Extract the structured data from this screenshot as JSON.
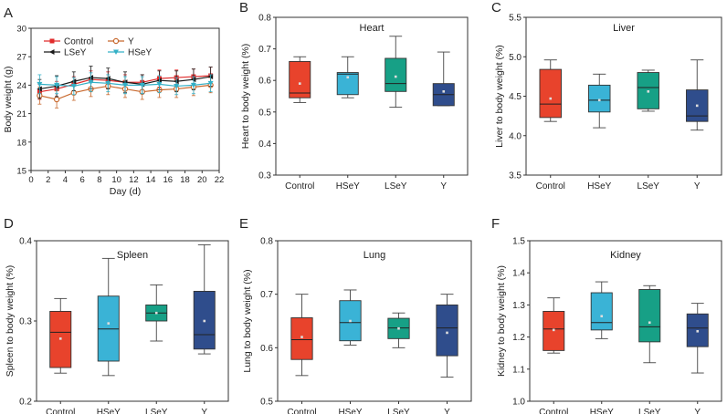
{
  "colors": {
    "control": "#e8432c",
    "hsey": "#3ab3d6",
    "lsey": "#17a086",
    "y": "#2f4d8c",
    "lineControl": "#e02b2b",
    "lineY": "#c8692e",
    "lineLSeY": "#1a1a1a",
    "lineHSeY": "#34b0c6"
  },
  "chart_data": [
    {
      "panel": "A",
      "type": "line",
      "title": "",
      "xlabel": "Day (d)",
      "ylabel": "Body weight (g)",
      "xlim": [
        0,
        22
      ],
      "ylim": [
        15,
        30
      ],
      "xticks": [
        "0",
        "2",
        "4",
        "6",
        "8",
        "10",
        "12",
        "14",
        "16",
        "18",
        "20",
        "22"
      ],
      "yticks": [
        "15",
        "18",
        "21",
        "24",
        "27",
        "30"
      ],
      "x": [
        1,
        3,
        5,
        7,
        9,
        11,
        13,
        15,
        17,
        19,
        21
      ],
      "legend_position": "top-left",
      "series": [
        {
          "name": "Control",
          "values": [
            23.3,
            23.6,
            24.1,
            24.6,
            24.5,
            24.3,
            24.3,
            24.7,
            24.8,
            24.9,
            25.0
          ],
          "error": [
            0.8,
            0.8,
            0.8,
            0.9,
            0.9,
            0.8,
            0.8,
            0.9,
            0.8,
            0.8,
            0.9
          ]
        },
        {
          "name": "Y",
          "values": [
            22.9,
            22.5,
            23.2,
            23.6,
            23.9,
            23.6,
            23.3,
            23.5,
            23.6,
            23.8,
            24.0
          ],
          "error": [
            0.9,
            0.9,
            0.8,
            0.8,
            0.9,
            0.9,
            0.8,
            0.8,
            0.9,
            0.9,
            0.8
          ]
        },
        {
          "name": "LSeY",
          "values": [
            23.6,
            23.9,
            24.4,
            24.8,
            24.7,
            24.3,
            24.1,
            24.5,
            24.4,
            24.6,
            24.9
          ],
          "error": [
            1.0,
            1.1,
            1.0,
            1.2,
            1.1,
            1.1,
            1.0,
            1.0,
            1.1,
            1.1,
            1.0
          ]
        },
        {
          "name": "HSeY",
          "values": [
            24.1,
            24.0,
            23.9,
            24.3,
            24.2,
            24.0,
            24.0,
            24.1,
            23.9,
            24.0,
            24.2
          ],
          "error": [
            1.0,
            0.9,
            0.9,
            1.0,
            0.9,
            0.9,
            0.9,
            0.9,
            0.9,
            0.9,
            0.9
          ]
        }
      ]
    },
    {
      "panel": "B",
      "type": "box",
      "title": "Heart",
      "ylabel": "Heart to body weight (%)",
      "ylim": [
        0.3,
        0.8
      ],
      "yticks": [
        "0.3",
        "0.4",
        "0.5",
        "0.6",
        "0.7",
        "0.8"
      ],
      "categories": [
        "Control",
        "HSeY",
        "LSeY",
        "Y"
      ],
      "boxes": [
        {
          "min": 0.53,
          "q1": 0.545,
          "median": 0.56,
          "q3": 0.66,
          "max": 0.675,
          "mean": 0.59
        },
        {
          "min": 0.545,
          "q1": 0.555,
          "median": 0.62,
          "q3": 0.625,
          "max": 0.675,
          "mean": 0.61
        },
        {
          "min": 0.515,
          "q1": 0.565,
          "median": 0.59,
          "q3": 0.67,
          "max": 0.74,
          "mean": 0.612
        },
        {
          "min": 0.52,
          "q1": 0.52,
          "median": 0.555,
          "q3": 0.59,
          "max": 0.69,
          "mean": 0.565
        }
      ]
    },
    {
      "panel": "C",
      "type": "box",
      "title": "Liver",
      "ylabel": "Liver to body weight (%)",
      "ylim": [
        3.5,
        5.5
      ],
      "yticks": [
        "3.5",
        "4.0",
        "4.5",
        "5.0",
        "5.5"
      ],
      "categories": [
        "Control",
        "HSeY",
        "LSeY",
        "Y"
      ],
      "boxes": [
        {
          "min": 4.18,
          "q1": 4.23,
          "median": 4.4,
          "q3": 4.84,
          "max": 4.96,
          "mean": 4.47
        },
        {
          "min": 4.1,
          "q1": 4.3,
          "median": 4.45,
          "q3": 4.64,
          "max": 4.78,
          "mean": 4.45
        },
        {
          "min": 4.31,
          "q1": 4.34,
          "median": 4.61,
          "q3": 4.8,
          "max": 4.83,
          "mean": 4.56
        },
        {
          "min": 4.07,
          "q1": 4.18,
          "median": 4.25,
          "q3": 4.58,
          "max": 4.96,
          "mean": 4.38
        }
      ]
    },
    {
      "panel": "D",
      "type": "box",
      "title": "Spleen",
      "ylabel": "Spleen to body weight (%)",
      "ylim": [
        0.2,
        0.4
      ],
      "yticks": [
        "0.2",
        "0.3",
        "0.4"
      ],
      "categories": [
        "Control",
        "HSeY",
        "LSeY",
        "Y"
      ],
      "boxes": [
        {
          "min": 0.235,
          "q1": 0.242,
          "median": 0.286,
          "q3": 0.312,
          "max": 0.328,
          "mean": 0.278
        },
        {
          "min": 0.232,
          "q1": 0.25,
          "median": 0.29,
          "q3": 0.331,
          "max": 0.378,
          "mean": 0.297
        },
        {
          "min": 0.275,
          "q1": 0.3,
          "median": 0.31,
          "q3": 0.32,
          "max": 0.345,
          "mean": 0.31
        },
        {
          "min": 0.259,
          "q1": 0.265,
          "median": 0.283,
          "q3": 0.337,
          "max": 0.395,
          "mean": 0.3
        }
      ]
    },
    {
      "panel": "E",
      "type": "box",
      "title": "Lung",
      "ylabel": "Lung to body weight (%)",
      "ylim": [
        0.5,
        0.8
      ],
      "yticks": [
        "0.5",
        "0.6",
        "0.7",
        "0.8"
      ],
      "categories": [
        "Control",
        "HSeY",
        "LSeY",
        "Y"
      ],
      "boxes": [
        {
          "min": 0.548,
          "q1": 0.578,
          "median": 0.615,
          "q3": 0.656,
          "max": 0.7,
          "mean": 0.62
        },
        {
          "min": 0.605,
          "q1": 0.613,
          "median": 0.647,
          "q3": 0.688,
          "max": 0.708,
          "mean": 0.65
        },
        {
          "min": 0.6,
          "q1": 0.617,
          "median": 0.637,
          "q3": 0.655,
          "max": 0.665,
          "mean": 0.636
        },
        {
          "min": 0.545,
          "q1": 0.585,
          "median": 0.637,
          "q3": 0.68,
          "max": 0.7,
          "mean": 0.628
        }
      ]
    },
    {
      "panel": "F",
      "type": "box",
      "title": "Kidney",
      "ylabel": "Kidney to body weight (%)",
      "ylim": [
        1.0,
        1.5
      ],
      "yticks": [
        "1.0",
        "1.1",
        "1.2",
        "1.3",
        "1.4",
        "1.5"
      ],
      "categories": [
        "Control",
        "HSeY",
        "LSeY",
        "Y"
      ],
      "boxes": [
        {
          "min": 1.15,
          "q1": 1.158,
          "median": 1.225,
          "q3": 1.28,
          "max": 1.322,
          "mean": 1.222
        },
        {
          "min": 1.195,
          "q1": 1.222,
          "median": 1.245,
          "q3": 1.338,
          "max": 1.372,
          "mean": 1.265
        },
        {
          "min": 1.12,
          "q1": 1.185,
          "median": 1.232,
          "q3": 1.348,
          "max": 1.36,
          "mean": 1.245
        },
        {
          "min": 1.088,
          "q1": 1.17,
          "median": 1.228,
          "q3": 1.272,
          "max": 1.305,
          "mean": 1.218
        }
      ]
    }
  ]
}
